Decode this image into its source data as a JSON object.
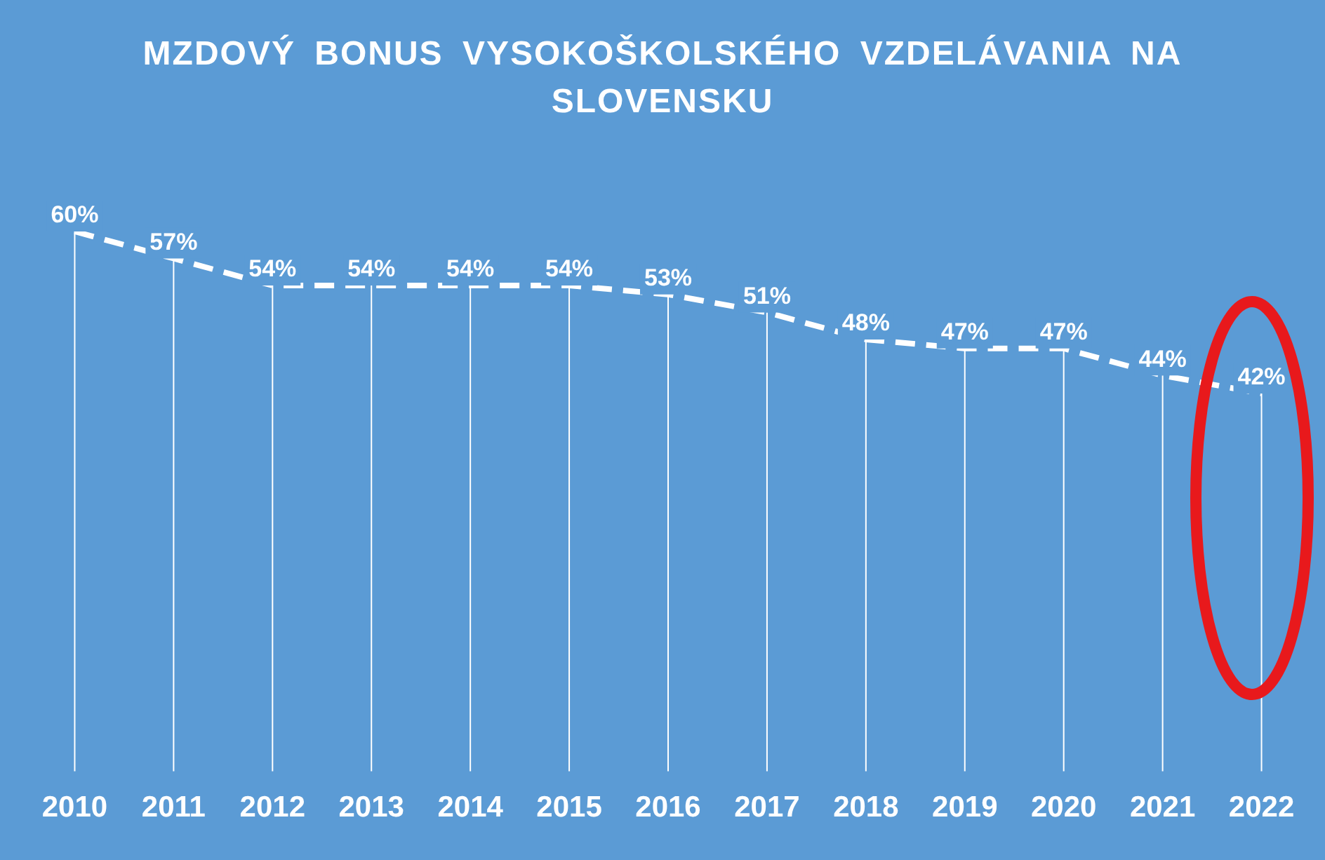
{
  "chart_data": {
    "type": "line",
    "title": "MZDOVÝ BONUS VYSOKOŠKOLSKÉHO VZDELÁVANIA NA SLOVENSKU",
    "categories": [
      "2010",
      "2011",
      "2012",
      "2013",
      "2014",
      "2015",
      "2016",
      "2017",
      "2018",
      "2019",
      "2020",
      "2021",
      "2022"
    ],
    "series": [
      {
        "color": "#ffffff",
        "values": [
          60,
          57,
          54,
          54,
          54,
          54,
          53,
          51,
          48,
          47,
          47,
          44,
          42
        ],
        "value_labels": [
          "60%",
          "57%",
          "54%",
          "54%",
          "54%",
          "54%",
          "53%",
          "51%",
          "48%",
          "47%",
          "47%",
          "44%",
          "42%"
        ]
      }
    ],
    "tick_labels": "x",
    "legend": false,
    "marker": "none",
    "line_style": "dashed",
    "grid": "x"
  }
}
